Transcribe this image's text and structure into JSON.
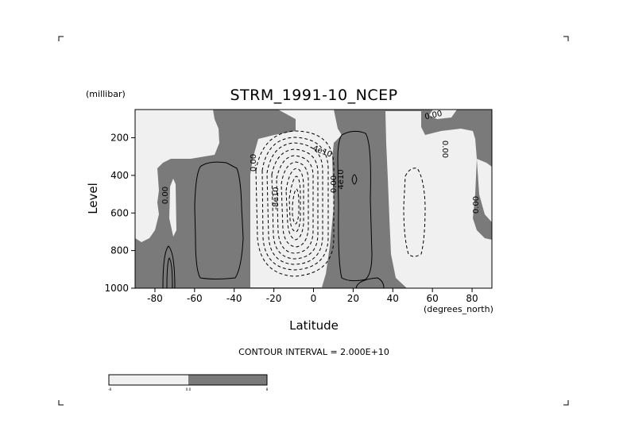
{
  "chart_data": {
    "type": "contour",
    "title": "STRM_1991-10_NCEP",
    "xlabel": "Latitude",
    "xunit": "(degrees_north)",
    "ylabel": "Level",
    "yunit": "(millibar)",
    "xlim": [
      -90,
      90
    ],
    "ylim": [
      1000,
      50
    ],
    "x_ticks": [
      -80,
      -60,
      -40,
      -20,
      0,
      20,
      40,
      60,
      80
    ],
    "y_ticks": [
      1000,
      800,
      600,
      400,
      200
    ],
    "contour_interval_text": "CONTOUR INTERVAL = 2.000E+10",
    "contour_interval": 20000000000,
    "shading": {
      "negative_fill": "#f0f0f0",
      "positive_fill": "#7a7a7a"
    },
    "colorbar_labels": [
      "-8",
      "0.0",
      "8"
    ],
    "contour_labels": [
      "0.00",
      "0.00",
      "0.00",
      "0.00",
      "0.00",
      "0.00",
      "-4e10",
      "-8e10",
      "4e10"
    ],
    "features": [
      {
        "sign": "positive",
        "lat_range": [
          -60,
          -25
        ],
        "p_range": [
          200,
          950
        ],
        "max_contours": 1
      },
      {
        "sign": "negative",
        "lat_range": [
          -35,
          10
        ],
        "p_range": [
          100,
          1000
        ],
        "min_contours": 9
      },
      {
        "sign": "positive",
        "lat_range": [
          10,
          35
        ],
        "p_range": [
          150,
          1000
        ],
        "max_contours": 3
      },
      {
        "sign": "negative",
        "lat_range": [
          38,
          75
        ],
        "p_range": [
          180,
          1000
        ],
        "min_contours": 2
      }
    ]
  }
}
